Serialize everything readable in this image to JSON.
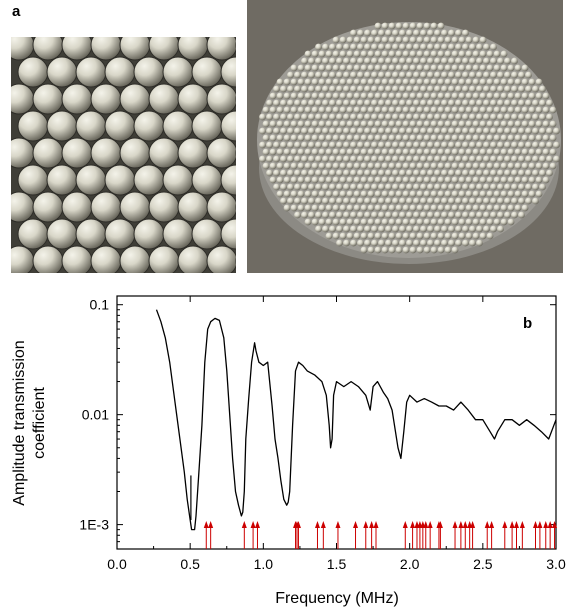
{
  "panel_a_label": "a",
  "panel_b_label": "b",
  "photos": {
    "left_alt": "close-up of metal beads",
    "right_alt": "disc of packed metal beads"
  },
  "colors": {
    "curve": "#000000",
    "arrows": "#cc0000",
    "bead_light": "#d8d6c8",
    "bead_dark": "#6d6b60"
  },
  "chart_data": {
    "type": "line",
    "title": "",
    "xlabel": "Frequency (MHz)",
    "ylabel_lines": [
      "Amplitude transmission",
      "coefficient"
    ],
    "x_scale": "linear",
    "y_scale": "log",
    "xlim": [
      0.0,
      3.0
    ],
    "ylim": [
      0.0006,
      0.12
    ],
    "x_ticks": [
      0.0,
      0.5,
      1.0,
      1.5,
      2.0,
      2.5,
      3.0
    ],
    "x_tick_labels": [
      "0.0",
      "0.5",
      "1.0",
      "1.5",
      "2.0",
      "2.5",
      "3.0"
    ],
    "y_ticks": [
      0.1,
      0.01,
      0.001
    ],
    "y_tick_labels": [
      "0.1",
      "0.01",
      "1E-3"
    ],
    "series": [
      {
        "x": [
          0.27,
          0.3,
          0.33,
          0.36,
          0.4,
          0.43,
          0.46,
          0.48,
          0.5,
          0.51,
          0.52,
          0.53,
          0.54,
          0.56,
          0.58,
          0.6,
          0.62,
          0.64,
          0.67,
          0.7,
          0.73,
          0.75,
          0.77,
          0.79,
          0.81,
          0.83,
          0.85,
          0.86,
          0.87,
          0.88,
          0.9,
          0.92,
          0.94,
          0.95,
          0.97,
          1.0,
          1.03,
          1.06,
          1.08,
          1.1,
          1.12,
          1.14,
          1.16,
          1.17,
          1.18,
          1.2,
          1.22,
          1.24,
          1.27,
          1.3,
          1.35,
          1.4,
          1.43,
          1.45,
          1.46,
          1.47,
          1.48,
          1.5,
          1.55,
          1.6,
          1.65,
          1.7,
          1.73,
          1.75,
          1.78,
          1.82,
          1.85,
          1.88,
          1.92,
          1.94,
          1.96,
          1.98,
          2.0,
          2.05,
          2.1,
          2.15,
          2.2,
          2.25,
          2.3,
          2.35,
          2.4,
          2.45,
          2.5,
          2.55,
          2.58,
          2.6,
          2.65,
          2.7,
          2.75,
          2.8,
          2.85,
          2.9,
          2.95,
          3.0
        ],
        "y": [
          0.09,
          0.07,
          0.05,
          0.03,
          0.012,
          0.006,
          0.003,
          0.0017,
          0.0011,
          0.0009,
          0.0009,
          0.0009,
          0.0012,
          0.003,
          0.008,
          0.03,
          0.06,
          0.07,
          0.075,
          0.072,
          0.05,
          0.025,
          0.01,
          0.004,
          0.002,
          0.0015,
          0.0012,
          0.0013,
          0.002,
          0.006,
          0.014,
          0.03,
          0.045,
          0.038,
          0.03,
          0.028,
          0.03,
          0.012,
          0.006,
          0.004,
          0.0025,
          0.0017,
          0.0015,
          0.0016,
          0.002,
          0.008,
          0.025,
          0.03,
          0.028,
          0.025,
          0.023,
          0.02,
          0.015,
          0.008,
          0.005,
          0.006,
          0.015,
          0.02,
          0.018,
          0.02,
          0.018,
          0.015,
          0.011,
          0.018,
          0.02,
          0.016,
          0.014,
          0.011,
          0.005,
          0.004,
          0.007,
          0.013,
          0.015,
          0.013,
          0.014,
          0.013,
          0.012,
          0.012,
          0.011,
          0.013,
          0.011,
          0.009,
          0.009,
          0.007,
          0.006,
          0.007,
          0.009,
          0.009,
          0.008,
          0.009,
          0.008,
          0.007,
          0.006,
          0.009
        ]
      }
    ],
    "spike": {
      "x": 0.505,
      "y_top": 0.0028
    },
    "arrow_markers_x": [
      0.61,
      0.64,
      0.87,
      0.93,
      0.96,
      1.22,
      1.23,
      1.24,
      1.37,
      1.41,
      1.51,
      1.63,
      1.7,
      1.74,
      1.77,
      1.97,
      2.02,
      2.05,
      2.07,
      2.09,
      2.11,
      2.14,
      2.2,
      2.21,
      2.31,
      2.35,
      2.38,
      2.41,
      2.43,
      2.53,
      2.56,
      2.65,
      2.7,
      2.73,
      2.77,
      2.86,
      2.89,
      2.93,
      2.96,
      2.99
    ]
  }
}
